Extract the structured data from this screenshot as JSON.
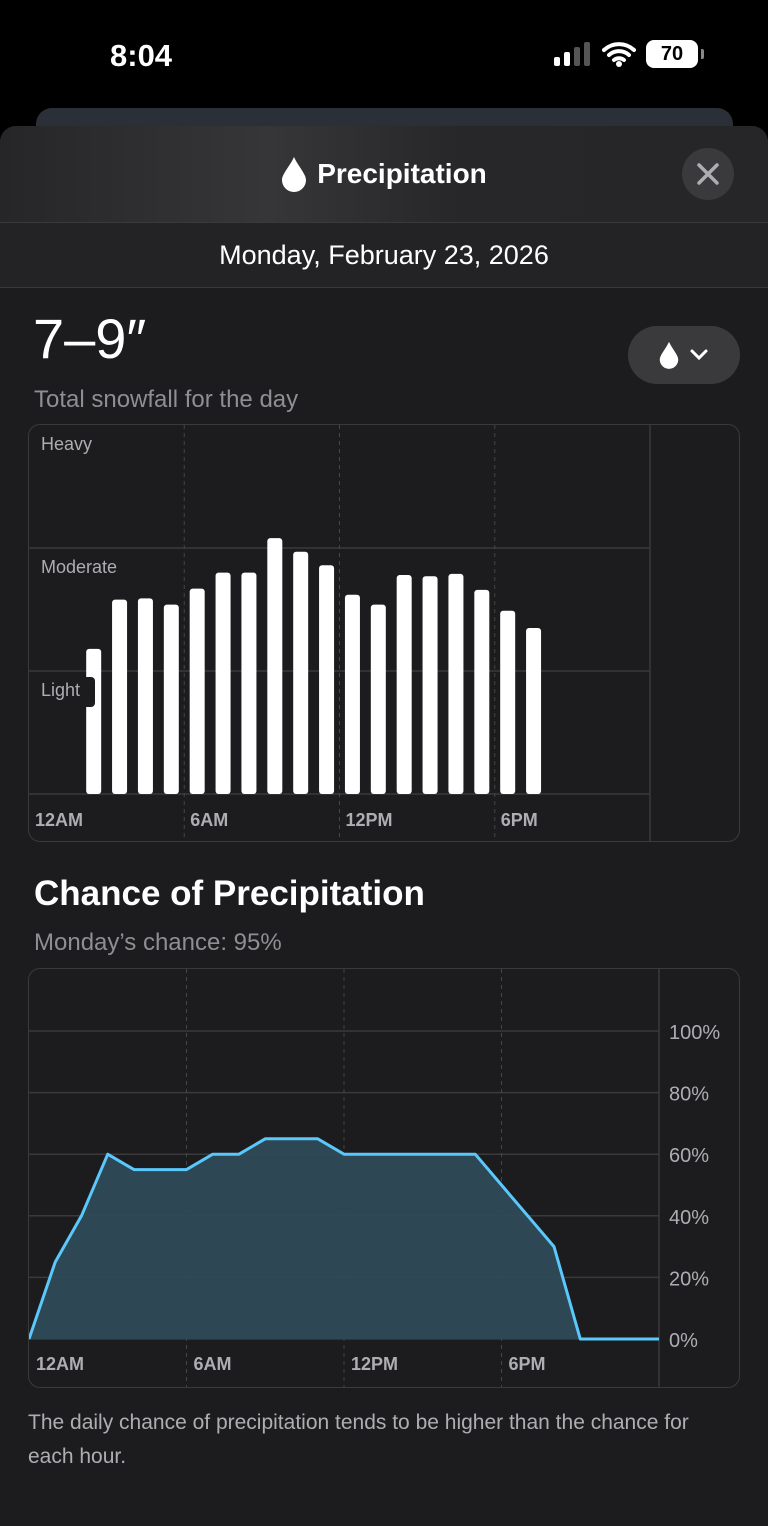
{
  "status_bar": {
    "time": "8:04",
    "battery": "70"
  },
  "header": {
    "title": "Precipitation",
    "icon": "drop-icon",
    "close_icon": "close-icon"
  },
  "date": "Monday, February 23, 2026",
  "summary": {
    "total": "7–9″",
    "subtitle": "Total snowfall for the day",
    "dropdown_icon": "drop-icon"
  },
  "colors": {
    "accent": "#5ac8fa",
    "fill": "#2e4a57",
    "background": "#1c1c1e"
  },
  "chart_data": [
    {
      "type": "bar",
      "ylabels": [
        "Light",
        "Moderate",
        "Heavy"
      ],
      "ylim": [
        0,
        3
      ],
      "xlabels": [
        "12AM",
        "6AM",
        "12PM",
        "6PM"
      ],
      "hours": [
        2,
        3,
        4,
        5,
        6,
        7,
        8,
        9,
        10,
        11,
        12,
        13,
        14,
        15,
        16,
        17,
        18,
        19
      ],
      "values": [
        1.18,
        1.58,
        1.59,
        1.54,
        1.67,
        1.8,
        1.8,
        2.08,
        1.97,
        1.86,
        1.62,
        1.54,
        1.78,
        1.77,
        1.79,
        1.66,
        1.49,
        1.35
      ]
    },
    {
      "type": "area",
      "title": "Chance of Precipitation",
      "subtitle": "Monday’s chance: 95%",
      "xlabels": [
        "12AM",
        "6AM",
        "12PM",
        "6PM"
      ],
      "ylabels": [
        "100%",
        "80%",
        "60%",
        "40%",
        "20%",
        "0%"
      ],
      "ylim": [
        0,
        100
      ],
      "hours": [
        0,
        1,
        2,
        3,
        4,
        5,
        6,
        7,
        8,
        9,
        10,
        11,
        12,
        13,
        14,
        15,
        16,
        17,
        18,
        19,
        20,
        21,
        22,
        23,
        24
      ],
      "values": [
        0,
        25,
        40,
        60,
        55,
        55,
        55,
        60,
        60,
        65,
        65,
        65,
        60,
        60,
        60,
        60,
        60,
        60,
        50,
        40,
        30,
        0,
        0,
        0,
        0
      ]
    }
  ],
  "footnote": "The daily chance of precipitation tends to be higher than the chance for each hour."
}
